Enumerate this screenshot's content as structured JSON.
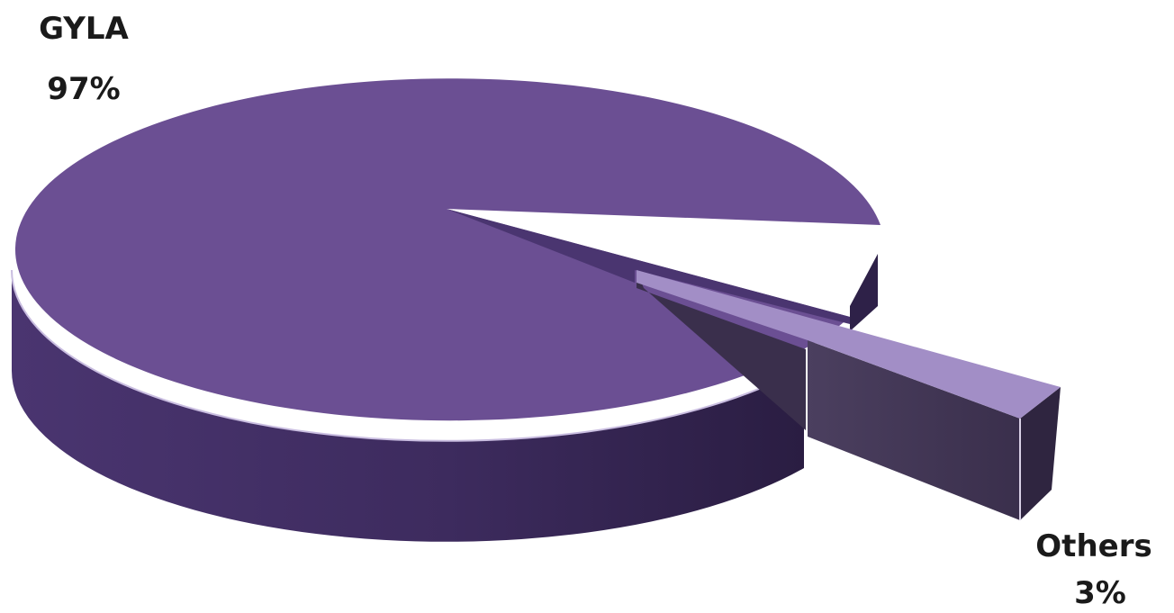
{
  "chart_data": {
    "type": "pie",
    "style": "3d-exploded",
    "title": "",
    "slices": [
      {
        "label": "GYLA",
        "value": 97,
        "value_label": "97%",
        "color": "#6b4f93"
      },
      {
        "label": "Others",
        "value": 3,
        "value_label": "3%",
        "color": "#a28ec6"
      }
    ]
  }
}
